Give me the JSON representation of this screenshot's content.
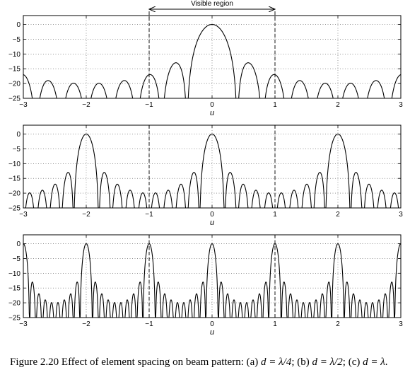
{
  "chart_data": [
    {
      "type": "line",
      "panel": "a",
      "xlabel": "u",
      "ylabel": "",
      "xlim": [
        -3,
        3
      ],
      "ylim": [
        -25,
        3
      ],
      "xticks": [
        -3,
        -2,
        -1,
        0,
        1,
        2,
        3
      ],
      "yticks": [
        0,
        -5,
        -10,
        -15,
        -20,
        -25
      ],
      "grid": "dotted",
      "d_over_lambda": 0.25,
      "elements": 10,
      "visible_region": [
        -1,
        1
      ],
      "annotation": "Visible region"
    },
    {
      "type": "line",
      "panel": "b",
      "xlabel": "u",
      "ylabel": "",
      "xlim": [
        -3,
        3
      ],
      "ylim": [
        -25,
        3
      ],
      "xticks": [
        -3,
        -2,
        -1,
        0,
        1,
        2,
        3
      ],
      "yticks": [
        0,
        -5,
        -10,
        -15,
        -20,
        -25
      ],
      "grid": "dotted",
      "d_over_lambda": 0.5,
      "elements": 10,
      "visible_region": [
        -1,
        1
      ]
    },
    {
      "type": "line",
      "panel": "c",
      "xlabel": "u",
      "ylabel": "",
      "xlim": [
        -3,
        3
      ],
      "ylim": [
        -25,
        3
      ],
      "xticks": [
        -3,
        -2,
        -1,
        0,
        1,
        2,
        3
      ],
      "yticks": [
        0,
        -5,
        -10,
        -15,
        -20,
        -25
      ],
      "grid": "dotted",
      "d_over_lambda": 1.0,
      "elements": 10,
      "visible_region": [
        -1,
        1
      ]
    }
  ],
  "caption": {
    "label": "Figure 2.20",
    "text": "Effect of element spacing on beam pattern: (a) ",
    "a": "d = λ/4",
    "b_prefix": "; (b) ",
    "b": "d = λ/2",
    "c_prefix": "; (c) ",
    "c": "d = λ",
    "end": "."
  }
}
